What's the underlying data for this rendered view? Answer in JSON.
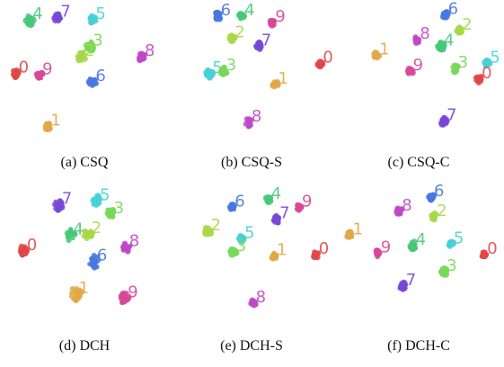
{
  "colors": {
    "0": "#e04848",
    "1": "#e0a848",
    "2": "#a8d848",
    "3": "#78d858",
    "4": "#48c878",
    "5": "#48d0d8",
    "6": "#4878e0",
    "7": "#7848d8",
    "8": "#c048c8",
    "9": "#d84898"
  },
  "chart_data": [
    {
      "type": "scatter",
      "caption": "(a) CSQ",
      "clusters": [
        {
          "label": "4",
          "x": -0.78,
          "y": 0.86,
          "spread": 0.06
        },
        {
          "label": "7",
          "x": -0.38,
          "y": 0.9,
          "spread": 0.05
        },
        {
          "label": "5",
          "x": 0.12,
          "y": 0.86,
          "spread": 0.05
        },
        {
          "label": "3",
          "x": 0.08,
          "y": 0.46,
          "spread": 0.06
        },
        {
          "label": "2",
          "x": -0.04,
          "y": 0.3,
          "spread": 0.06
        },
        {
          "label": "8",
          "x": 0.82,
          "y": 0.3,
          "spread": 0.05
        },
        {
          "label": "0",
          "x": -0.98,
          "y": 0.05,
          "spread": 0.05
        },
        {
          "label": "9",
          "x": -0.64,
          "y": 0.02,
          "spread": 0.05
        },
        {
          "label": "6",
          "x": 0.12,
          "y": -0.08,
          "spread": 0.06
        },
        {
          "label": "1",
          "x": -0.52,
          "y": -0.76,
          "spread": 0.04
        }
      ]
    },
    {
      "type": "scatter",
      "caption": "(b) CSQ-S",
      "clusters": [
        {
          "label": "6",
          "x": -0.48,
          "y": 0.92,
          "spread": 0.05
        },
        {
          "label": "4",
          "x": -0.14,
          "y": 0.92,
          "spread": 0.04
        },
        {
          "label": "9",
          "x": 0.3,
          "y": 0.82,
          "spread": 0.04
        },
        {
          "label": "2",
          "x": -0.28,
          "y": 0.58,
          "spread": 0.05
        },
        {
          "label": "7",
          "x": 0.1,
          "y": 0.46,
          "spread": 0.05
        },
        {
          "label": "0",
          "x": 0.98,
          "y": 0.2,
          "spread": 0.04
        },
        {
          "label": "5",
          "x": -0.6,
          "y": 0.04,
          "spread": 0.05
        },
        {
          "label": "3",
          "x": -0.4,
          "y": 0.08,
          "spread": 0.05
        },
        {
          "label": "1",
          "x": 0.34,
          "y": -0.12,
          "spread": 0.04
        },
        {
          "label": "8",
          "x": -0.04,
          "y": -0.7,
          "spread": 0.05
        }
      ]
    },
    {
      "type": "scatter",
      "caption": "(c) CSQ-C",
      "clusters": [
        {
          "label": "6",
          "x": 0.38,
          "y": 0.94,
          "spread": 0.04
        },
        {
          "label": "2",
          "x": 0.58,
          "y": 0.7,
          "spread": 0.04
        },
        {
          "label": "8",
          "x": -0.02,
          "y": 0.56,
          "spread": 0.04
        },
        {
          "label": "4",
          "x": 0.32,
          "y": 0.46,
          "spread": 0.05
        },
        {
          "label": "1",
          "x": -0.6,
          "y": 0.32,
          "spread": 0.04
        },
        {
          "label": "5",
          "x": 0.98,
          "y": 0.2,
          "spread": 0.04
        },
        {
          "label": "9",
          "x": -0.12,
          "y": 0.08,
          "spread": 0.04
        },
        {
          "label": "3",
          "x": 0.52,
          "y": 0.12,
          "spread": 0.05
        },
        {
          "label": "0",
          "x": 0.86,
          "y": -0.04,
          "spread": 0.04
        },
        {
          "label": "7",
          "x": 0.36,
          "y": -0.68,
          "spread": 0.05
        }
      ]
    },
    {
      "type": "scatter",
      "caption": "(d) DCH",
      "clusters": [
        {
          "label": "7",
          "x": -0.36,
          "y": 0.84,
          "spread": 0.07
        },
        {
          "label": "5",
          "x": 0.18,
          "y": 0.9,
          "spread": 0.06
        },
        {
          "label": "3",
          "x": 0.38,
          "y": 0.7,
          "spread": 0.06
        },
        {
          "label": "4",
          "x": -0.2,
          "y": 0.38,
          "spread": 0.07
        },
        {
          "label": "2",
          "x": 0.06,
          "y": 0.4,
          "spread": 0.07
        },
        {
          "label": "8",
          "x": 0.6,
          "y": 0.2,
          "spread": 0.06
        },
        {
          "label": "0",
          "x": -0.86,
          "y": 0.14,
          "spread": 0.06
        },
        {
          "label": "6",
          "x": 0.14,
          "y": -0.02,
          "spread": 0.08
        },
        {
          "label": "1",
          "x": -0.12,
          "y": -0.52,
          "spread": 0.08
        },
        {
          "label": "9",
          "x": 0.58,
          "y": -0.58,
          "spread": 0.07
        }
      ]
    },
    {
      "type": "scatter",
      "caption": "(e) DCH-S",
      "clusters": [
        {
          "label": "4",
          "x": 0.24,
          "y": 0.92,
          "spread": 0.04
        },
        {
          "label": "6",
          "x": -0.28,
          "y": 0.8,
          "spread": 0.04
        },
        {
          "label": "9",
          "x": 0.68,
          "y": 0.8,
          "spread": 0.04
        },
        {
          "label": "7",
          "x": 0.36,
          "y": 0.62,
          "spread": 0.05
        },
        {
          "label": "2",
          "x": -0.62,
          "y": 0.44,
          "spread": 0.05
        },
        {
          "label": "5",
          "x": -0.14,
          "y": 0.32,
          "spread": 0.04
        },
        {
          "label": "3",
          "x": -0.26,
          "y": 0.12,
          "spread": 0.05
        },
        {
          "label": "1",
          "x": 0.32,
          "y": 0.06,
          "spread": 0.04
        },
        {
          "label": "0",
          "x": 0.92,
          "y": 0.08,
          "spread": 0.04
        },
        {
          "label": "8",
          "x": 0.02,
          "y": -0.66,
          "spread": 0.04
        }
      ]
    },
    {
      "type": "scatter",
      "caption": "(f) DCH-C",
      "clusters": [
        {
          "label": "6",
          "x": 0.18,
          "y": 0.96,
          "spread": 0.04
        },
        {
          "label": "8",
          "x": -0.28,
          "y": 0.74,
          "spread": 0.04
        },
        {
          "label": "2",
          "x": 0.22,
          "y": 0.66,
          "spread": 0.04
        },
        {
          "label": "1",
          "x": -0.98,
          "y": 0.38,
          "spread": 0.04
        },
        {
          "label": "4",
          "x": -0.08,
          "y": 0.22,
          "spread": 0.05
        },
        {
          "label": "5",
          "x": 0.46,
          "y": 0.24,
          "spread": 0.04
        },
        {
          "label": "9",
          "x": -0.58,
          "y": 0.1,
          "spread": 0.04
        },
        {
          "label": "0",
          "x": 0.94,
          "y": 0.08,
          "spread": 0.04
        },
        {
          "label": "3",
          "x": 0.36,
          "y": -0.18,
          "spread": 0.05
        },
        {
          "label": "7",
          "x": -0.22,
          "y": -0.4,
          "spread": 0.05
        }
      ]
    }
  ]
}
